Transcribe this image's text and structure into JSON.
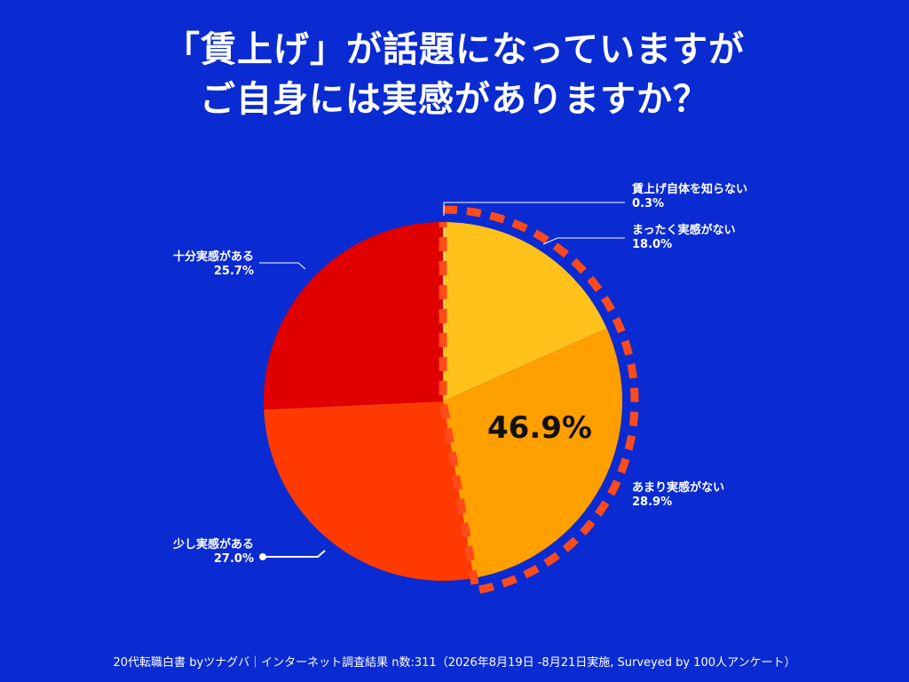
{
  "title_lines": [
    "「賃上げ」が話題になっていますが",
    "ご自身には実感がありますか？"
  ],
  "chart_data": {
    "type": "pie",
    "start_angle_deg": 0,
    "direction": "clockwise",
    "slices": [
      {
        "label": "賃上げ自体を知らない",
        "value": 0.3,
        "value_text": "0.3%",
        "color": "#f2d25a"
      },
      {
        "label": "まったく実感がない",
        "value": 18.0,
        "value_text": "18.0%",
        "color": "#ffc21a"
      },
      {
        "label": "あまり実感がない",
        "value": 28.9,
        "value_text": "28.9%",
        "color": "#ff9f00"
      },
      {
        "label": "少し実感がある",
        "value": 27.0,
        "value_text": "27.0%",
        "color": "#ff3a00"
      },
      {
        "label": "十分実感がある",
        "value": 25.7,
        "value_text": "25.7%",
        "color": "#e00000"
      }
    ],
    "highlight": {
      "value_text": "46.9%",
      "color": "#ff4a1a"
    }
  },
  "footer": "20代転職白書 byツナグバ｜インターネット調査結果 n数:311（2026年8月19日 -8月21日実施, Surveyed by 100人アンケート）"
}
